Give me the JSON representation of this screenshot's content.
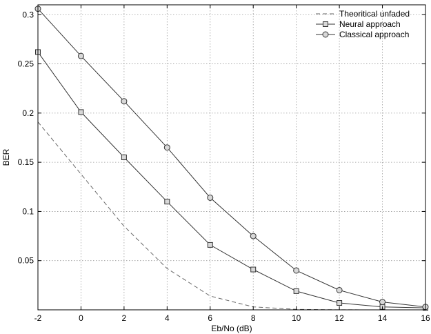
{
  "chart_data": {
    "type": "line",
    "title": "",
    "xlabel": "Eb/No (dB)",
    "ylabel": "BER",
    "xlim": [
      -2,
      16
    ],
    "ylim": [
      0,
      0.31
    ],
    "xticks": [
      -2,
      0,
      2,
      4,
      6,
      8,
      10,
      12,
      14,
      16
    ],
    "xtick_labels": [
      "-2",
      "0",
      "2",
      "4",
      "6",
      "8",
      "10",
      "12",
      "14",
      "16"
    ],
    "yticks": [
      0.05,
      0.1,
      0.15,
      0.2,
      0.25,
      0.3
    ],
    "ytick_labels": [
      "0.05",
      "0.1",
      "0.15",
      "0.2",
      "0.25",
      "0.3"
    ],
    "grid": true,
    "legend_position": "top-right",
    "x": [
      -2,
      0,
      2,
      4,
      6,
      8,
      10,
      12,
      14,
      16
    ],
    "series": [
      {
        "name": "Theoritical unfaded",
        "style": "dashed",
        "marker": "none",
        "color": "#666666",
        "values": [
          0.191,
          0.138,
          0.085,
          0.042,
          0.014,
          0.003,
          0.0005,
          0.0001,
          0.0,
          0.0
        ]
      },
      {
        "name": "Neural approach",
        "style": "solid",
        "marker": "square",
        "color": "#333333",
        "values": [
          0.262,
          0.201,
          0.155,
          0.11,
          0.066,
          0.041,
          0.019,
          0.007,
          0.003,
          0.002
        ]
      },
      {
        "name": "Classical approach",
        "style": "solid",
        "marker": "circle",
        "color": "#333333",
        "values": [
          0.306,
          0.258,
          0.212,
          0.165,
          0.114,
          0.075,
          0.04,
          0.02,
          0.008,
          0.003
        ]
      }
    ]
  }
}
